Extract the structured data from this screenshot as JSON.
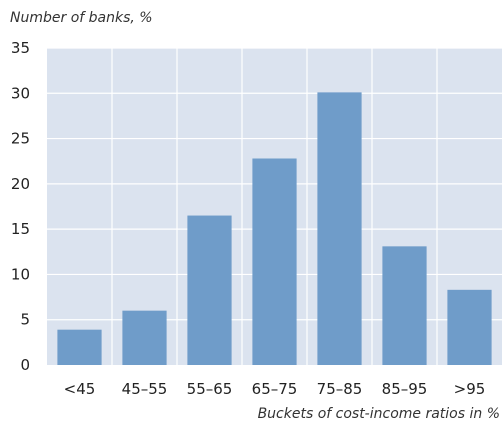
{
  "chart_data": {
    "type": "bar",
    "ylabel": "Number of banks, %",
    "xlabel": "Buckets of cost-income ratios in %",
    "categories": [
      "<45",
      "45–55",
      "55–65",
      "65–75",
      "75–85",
      "85–95",
      ">95"
    ],
    "values": [
      3.9,
      6.0,
      16.5,
      22.8,
      30.1,
      13.1,
      8.3
    ],
    "ylim": [
      0,
      35
    ],
    "yticks": [
      0,
      5,
      10,
      15,
      20,
      25,
      30,
      35
    ],
    "grid": true,
    "colors": {
      "plot_background": "#dbe3ef",
      "bar": "#6f9cc9",
      "grid": "#ffffff"
    }
  }
}
